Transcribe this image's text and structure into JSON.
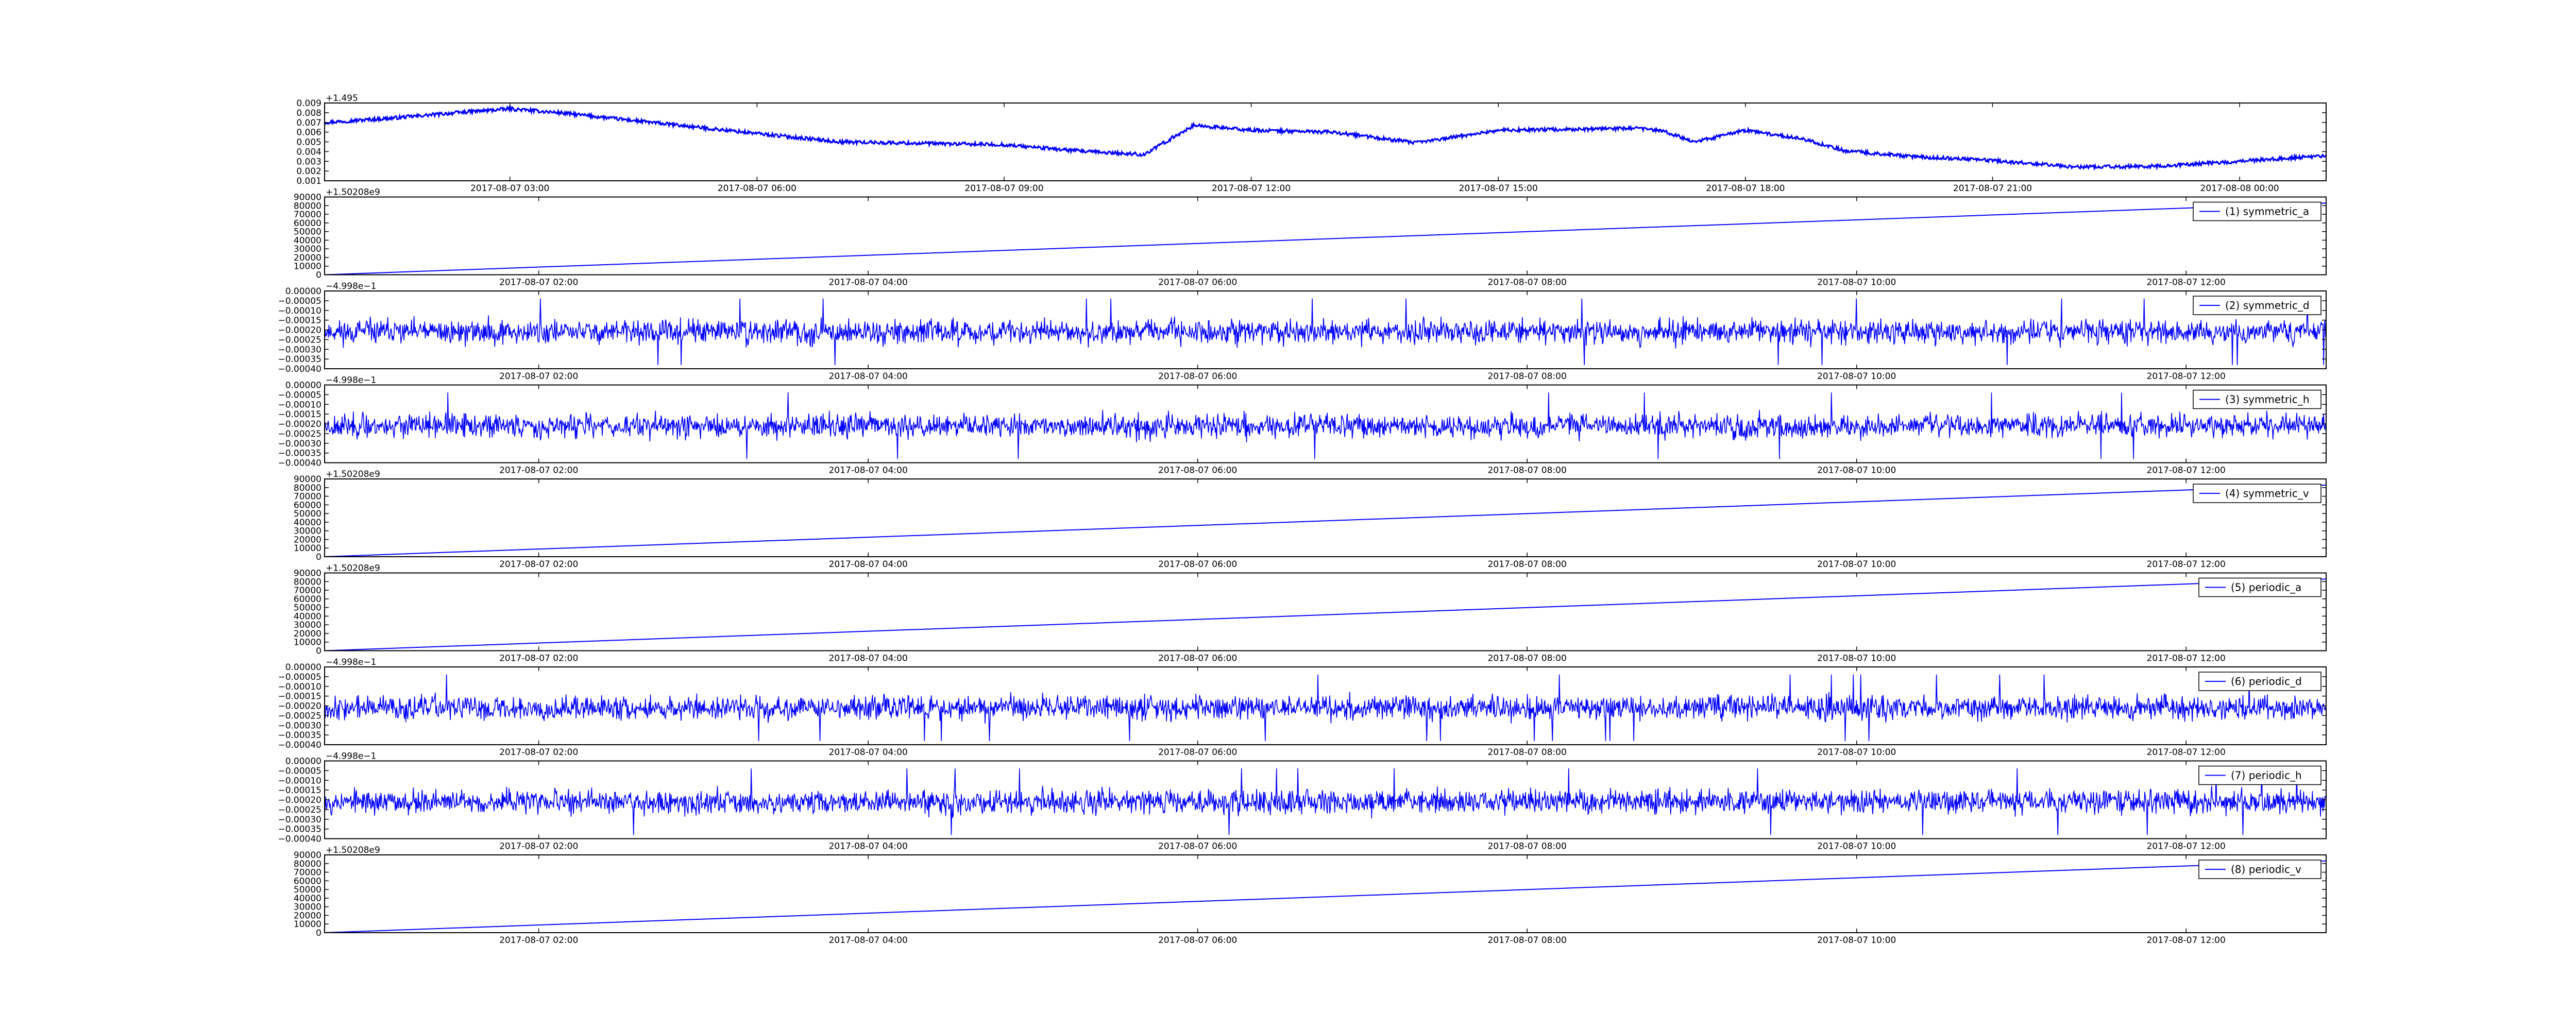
{
  "figure": {
    "background": "#ffffff",
    "axes_color": "#000000"
  },
  "chart_data": [
    {
      "type": "line",
      "color": "#0000ff",
      "offset_label": "+1.495",
      "ylim": [
        0.001,
        0.009
      ],
      "yticks": [
        "0.001",
        "0.002",
        "0.003",
        "0.004",
        "0.005",
        "0.006",
        "0.007",
        "0.008",
        "0.009"
      ],
      "xticks": [
        "2017-08-07 03:00",
        "2017-08-07 06:00",
        "2017-08-07 09:00",
        "2017-08-07 12:00",
        "2017-08-07 15:00",
        "2017-08-07 18:00",
        "2017-08-07 21:00",
        "2017-08-08 00:00"
      ],
      "xlim_hours": [
        0.75,
        25.05
      ],
      "xtick_hours": [
        3,
        6,
        9,
        12,
        15,
        18,
        21,
        24
      ],
      "noise": 0.00018,
      "series": [
        {
          "x_hours": [
            0.75,
            1.5,
            2.5,
            3.0,
            3.6,
            4.5,
            5.5,
            7.0,
            9.0,
            10.0,
            10.7,
            11.3,
            12.0,
            13.0,
            14.0,
            15.0,
            16.0,
            16.7,
            17.0,
            17.4,
            18.0,
            18.7,
            19.2,
            20.0,
            21.0,
            22.0,
            23.0,
            24.0,
            25.05
          ],
          "y": [
            0.007,
            0.0074,
            0.0081,
            0.0084,
            0.008,
            0.0072,
            0.0063,
            0.005,
            0.0047,
            0.004,
            0.0037,
            0.0067,
            0.0062,
            0.006,
            0.0049,
            0.0062,
            0.0063,
            0.0064,
            0.0061,
            0.005,
            0.0062,
            0.0053,
            0.0041,
            0.0035,
            0.0031,
            0.0024,
            0.0025,
            0.003,
            0.0036
          ]
        }
      ]
    },
    {
      "type": "line",
      "color": "#0000ff",
      "offset_label": "+1.50208e9",
      "ylim": [
        0,
        90000
      ],
      "yticks": [
        "0",
        "10000",
        "20000",
        "30000",
        "40000",
        "50000",
        "60000",
        "70000",
        "80000",
        "90000"
      ],
      "xticks": [
        "2017-08-07 02:00",
        "2017-08-07 04:00",
        "2017-08-07 06:00",
        "2017-08-07 08:00",
        "2017-08-07 10:00",
        "2017-08-07 12:00"
      ],
      "xlim_hours": [
        0.7,
        12.85
      ],
      "xtick_hours": [
        2,
        4,
        6,
        8,
        10,
        12
      ],
      "legend": "(1) symmetric_a",
      "legend_loc": "upper right",
      "series": [
        {
          "x_hours": [
            0.7,
            12.85
          ],
          "y": [
            0,
            83000
          ]
        }
      ]
    },
    {
      "type": "line",
      "color": "#0000ff",
      "offset_label": "−4.998e−1",
      "ylim": [
        -0.0004,
        0.0
      ],
      "yticks": [
        "−0.00040",
        "−0.00035",
        "−0.00030",
        "−0.00025",
        "−0.00020",
        "−0.00015",
        "−0.00010",
        "−0.00005",
        "0.00000"
      ],
      "xticks": [
        "2017-08-07 02:00",
        "2017-08-07 04:00",
        "2017-08-07 06:00",
        "2017-08-07 08:00",
        "2017-08-07 10:00",
        "2017-08-07 12:00"
      ],
      "xlim_hours": [
        0.7,
        12.85
      ],
      "xtick_hours": [
        2,
        4,
        6,
        8,
        10,
        12
      ],
      "legend": "(2) symmetric_d",
      "legend_loc": "upper right",
      "noise_center": -0.00021,
      "noise_amplitude": 9e-05,
      "noise_seed": 11
    },
    {
      "type": "line",
      "color": "#0000ff",
      "offset_label": "−4.998e−1",
      "ylim": [
        -0.0004,
        0.0
      ],
      "yticks": [
        "−0.00040",
        "−0.00035",
        "−0.00030",
        "−0.00025",
        "−0.00020",
        "−0.00015",
        "−0.00010",
        "−0.00005",
        "0.00000"
      ],
      "xticks": [
        "2017-08-07 02:00",
        "2017-08-07 04:00",
        "2017-08-07 06:00",
        "2017-08-07 08:00",
        "2017-08-07 10:00",
        "2017-08-07 12:00"
      ],
      "xlim_hours": [
        0.7,
        12.85
      ],
      "xtick_hours": [
        2,
        4,
        6,
        8,
        10,
        12
      ],
      "legend": "(3) symmetric_h",
      "legend_loc": "upper right",
      "noise_center": -0.00021,
      "noise_amplitude": 9e-05,
      "noise_seed": 23
    },
    {
      "type": "line",
      "color": "#0000ff",
      "offset_label": "+1.50208e9",
      "ylim": [
        0,
        90000
      ],
      "yticks": [
        "0",
        "10000",
        "20000",
        "30000",
        "40000",
        "50000",
        "60000",
        "70000",
        "80000",
        "90000"
      ],
      "xticks": [
        "2017-08-07 02:00",
        "2017-08-07 04:00",
        "2017-08-07 06:00",
        "2017-08-07 08:00",
        "2017-08-07 10:00",
        "2017-08-07 12:00"
      ],
      "xlim_hours": [
        0.7,
        12.85
      ],
      "xtick_hours": [
        2,
        4,
        6,
        8,
        10,
        12
      ],
      "legend": "(4) symmetric_v",
      "legend_loc": "upper right",
      "series": [
        {
          "x_hours": [
            0.7,
            12.85
          ],
          "y": [
            0,
            83000
          ]
        }
      ]
    },
    {
      "type": "line",
      "color": "#0000ff",
      "offset_label": "+1.50208e9",
      "ylim": [
        0,
        90000
      ],
      "yticks": [
        "0",
        "10000",
        "20000",
        "30000",
        "40000",
        "50000",
        "60000",
        "70000",
        "80000",
        "90000"
      ],
      "xticks": [
        "2017-08-07 02:00",
        "2017-08-07 04:00",
        "2017-08-07 06:00",
        "2017-08-07 08:00",
        "2017-08-07 10:00",
        "2017-08-07 12:00"
      ],
      "xlim_hours": [
        0.7,
        12.85
      ],
      "xtick_hours": [
        2,
        4,
        6,
        8,
        10,
        12
      ],
      "legend": "(5) periodic_a",
      "legend_loc": "upper right",
      "series": [
        {
          "x_hours": [
            0.7,
            12.85
          ],
          "y": [
            0,
            83000
          ]
        }
      ]
    },
    {
      "type": "line",
      "color": "#0000ff",
      "offset_label": "−4.998e−1",
      "ylim": [
        -0.0004,
        0.0
      ],
      "yticks": [
        "−0.00040",
        "−0.00035",
        "−0.00030",
        "−0.00025",
        "−0.00020",
        "−0.00015",
        "−0.00010",
        "−0.00005",
        "0.00000"
      ],
      "xticks": [
        "2017-08-07 02:00",
        "2017-08-07 04:00",
        "2017-08-07 06:00",
        "2017-08-07 08:00",
        "2017-08-07 10:00",
        "2017-08-07 12:00"
      ],
      "xlim_hours": [
        0.7,
        12.85
      ],
      "xtick_hours": [
        2,
        4,
        6,
        8,
        10,
        12
      ],
      "legend": "(6) periodic_d",
      "legend_loc": "upper right",
      "noise_center": -0.00021,
      "noise_amplitude": 9e-05,
      "noise_seed": 37
    },
    {
      "type": "line",
      "color": "#0000ff",
      "offset_label": "−4.998e−1",
      "ylim": [
        -0.0004,
        0.0
      ],
      "yticks": [
        "−0.00040",
        "−0.00035",
        "−0.00030",
        "−0.00025",
        "−0.00020",
        "−0.00015",
        "−0.00010",
        "−0.00005",
        "0.00000"
      ],
      "xticks": [
        "2017-08-07 02:00",
        "2017-08-07 04:00",
        "2017-08-07 06:00",
        "2017-08-07 08:00",
        "2017-08-07 10:00",
        "2017-08-07 12:00"
      ],
      "xlim_hours": [
        0.7,
        12.85
      ],
      "xtick_hours": [
        2,
        4,
        6,
        8,
        10,
        12
      ],
      "legend": "(7) periodic_h",
      "legend_loc": "upper right",
      "noise_center": -0.00021,
      "noise_amplitude": 9e-05,
      "noise_seed": 53
    },
    {
      "type": "line",
      "color": "#0000ff",
      "offset_label": "+1.50208e9",
      "ylim": [
        0,
        90000
      ],
      "yticks": [
        "0",
        "10000",
        "20000",
        "30000",
        "40000",
        "50000",
        "60000",
        "70000",
        "80000",
        "90000"
      ],
      "xticks": [
        "2017-08-07 02:00",
        "2017-08-07 04:00",
        "2017-08-07 06:00",
        "2017-08-07 08:00",
        "2017-08-07 10:00",
        "2017-08-07 12:00"
      ],
      "xlim_hours": [
        0.7,
        12.85
      ],
      "xtick_hours": [
        2,
        4,
        6,
        8,
        10,
        12
      ],
      "legend": "(8) periodic_v",
      "legend_loc": "upper right",
      "series": [
        {
          "x_hours": [
            0.7,
            12.85
          ],
          "y": [
            0,
            83000
          ]
        }
      ]
    }
  ]
}
